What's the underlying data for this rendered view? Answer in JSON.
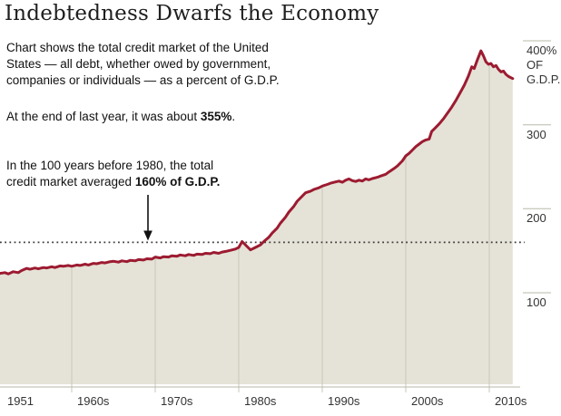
{
  "header": {
    "title": "Indebtedness Dwarfs the Economy"
  },
  "annotations": {
    "description": {
      "lines": [
        "Chart shows the total credit market of the United",
        "States — all debt, whether owed by government,",
        "companies or individuals — as a percent of G.D.P."
      ]
    },
    "latest": {
      "prefix": "At the end of last year, it was about ",
      "bold": "355%",
      "suffix": "."
    },
    "average": {
      "line1": "In the 100 years before 1980, the total",
      "line2_prefix": "credit market averaged ",
      "line2_bold": "160% of G.D.P."
    }
  },
  "colors": {
    "line": "#9c1b31",
    "fill": "#e5e3d7",
    "gridline": "#c8c7b8",
    "axis": "#b9b8aa",
    "reference": "#3c3c3c",
    "arrow": "#111111"
  },
  "chart_data": {
    "type": "area",
    "title": "Indebtedness Dwarfs the Economy",
    "ylabel": "% of G.D.P.",
    "xlim": [
      1951.4,
      2012.8
    ],
    "ylim": [
      0,
      415
    ],
    "grid": "vertical-decades",
    "legend": "none",
    "reference_line": {
      "value": 160,
      "label": "160% of G.D.P. (100-year pre-1980 average)",
      "style": "dotted"
    },
    "peak_value": 388,
    "latest_value": 355,
    "x_axis": {
      "ticks": [
        {
          "year": 1951,
          "label": "1951",
          "gridline": false
        },
        {
          "year": 1960,
          "label": "1960s",
          "gridline": true
        },
        {
          "year": 1970,
          "label": "1970s",
          "gridline": true
        },
        {
          "year": 1980,
          "label": "1980s",
          "gridline": true
        },
        {
          "year": 1990,
          "label": "1990s",
          "gridline": true
        },
        {
          "year": 2000,
          "label": "2000s",
          "gridline": true
        },
        {
          "year": 2010,
          "label": "2010s",
          "gridline": true
        }
      ]
    },
    "y_axis": {
      "ticks": [
        {
          "value": 400,
          "label": "400%",
          "unit_lines": [
            "OF",
            "G.D.P."
          ]
        },
        {
          "value": 300,
          "label": "300"
        },
        {
          "value": 200,
          "label": "200"
        },
        {
          "value": 100,
          "label": "100"
        }
      ]
    },
    "series": [
      {
        "name": "Total U.S. credit market debt as percent of G.D.P.",
        "x": [
          1951.4,
          1952,
          1952.4,
          1953,
          1953.6,
          1954,
          1954.6,
          1955,
          1955.6,
          1956,
          1956.6,
          1957,
          1957.6,
          1958,
          1958.6,
          1959,
          1959.6,
          1960,
          1960.6,
          1961,
          1961.6,
          1962,
          1962.6,
          1963,
          1963.6,
          1964,
          1964.6,
          1965,
          1965.6,
          1966,
          1966.6,
          1967,
          1967.6,
          1968,
          1968.6,
          1969,
          1969.6,
          1970,
          1970.6,
          1971,
          1971.6,
          1972,
          1972.6,
          1973,
          1973.6,
          1974,
          1974.6,
          1975,
          1975.6,
          1976,
          1976.6,
          1977,
          1977.6,
          1978,
          1978.6,
          1979,
          1979.6,
          1980,
          1980.4,
          1981,
          1981.4,
          1982,
          1982.6,
          1983,
          1983.6,
          1984,
          1984.6,
          1985,
          1985.6,
          1986,
          1986.6,
          1987,
          1987.6,
          1988,
          1988.6,
          1989,
          1989.6,
          1990,
          1990.6,
          1991,
          1991.6,
          1992,
          1992.4,
          1992.8,
          1993.2,
          1993.6,
          1994,
          1994.4,
          1994.8,
          1995.2,
          1995.6,
          1996,
          1996.6,
          1997,
          1997.6,
          1998,
          1998.6,
          1999,
          1999.6,
          2000,
          2000.4,
          2000.8,
          2001.2,
          2001.6,
          2002,
          2002.4,
          2002.8,
          2003.1,
          2003.5,
          2004,
          2004.5,
          2005,
          2005.5,
          2006,
          2006.5,
          2007,
          2007.5,
          2007.9,
          2008.2,
          2008.6,
          2009,
          2009.3,
          2009.6,
          2009.9,
          2010.2,
          2010.5,
          2010.8,
          2011.1,
          2011.4,
          2011.7,
          2012,
          2012.3,
          2012.8
        ],
        "values": [
          123,
          124,
          122.5,
          125,
          124,
          126.5,
          129,
          128,
          129.5,
          128.5,
          130,
          129.5,
          131,
          130,
          132,
          131.5,
          132.5,
          131.5,
          133,
          132.5,
          134,
          133,
          135,
          134.5,
          136,
          135.5,
          137,
          137.5,
          136.5,
          138,
          137,
          138.5,
          138,
          139.5,
          139,
          140.5,
          140,
          142.5,
          141.5,
          143,
          142.5,
          144,
          143.5,
          145,
          144,
          145.5,
          144.5,
          146,
          145.5,
          147,
          146.5,
          148,
          147,
          148.5,
          149.5,
          150.5,
          152,
          154,
          161,
          155,
          151,
          154,
          157,
          161,
          166,
          171,
          177,
          183,
          190,
          196,
          203,
          209,
          215,
          219,
          221,
          223,
          225,
          227,
          229,
          230.5,
          232,
          233,
          231.5,
          234,
          235.5,
          233.5,
          232.5,
          234,
          233,
          235.5,
          234.5,
          236,
          237.5,
          239,
          241,
          244,
          248,
          251,
          257,
          263,
          266,
          270,
          274,
          277,
          280,
          282,
          283,
          292,
          296,
          301,
          307,
          314,
          321,
          329,
          338,
          347,
          358,
          369,
          367,
          378,
          388,
          382,
          375,
          372,
          373,
          369,
          370.5,
          366,
          363,
          364,
          360,
          357.5,
          355
        ]
      }
    ]
  }
}
